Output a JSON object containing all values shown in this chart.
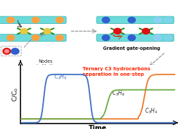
{
  "background_color": "#ffffff",
  "annotation_text": "Ternary C3 hydrocarbons\nseparation in one-step",
  "annotation_color": "#ff2200",
  "c3h8_color": "#4472c4",
  "c3h6_color": "#70ad47",
  "c3h4_color": "#ed7d31",
  "cyan_color": "#5cd6d6",
  "cyan_edge": "#30b0b0",
  "green_color": "#228B22",
  "orange_color": "#FFA040",
  "yellow_color": "#E8C840",
  "blue_color": "#3060D0",
  "light_blue_color": "#99ccff",
  "red_color": "#dd1111",
  "xlabel": "Time",
  "ylabel": "C/C$_0$"
}
